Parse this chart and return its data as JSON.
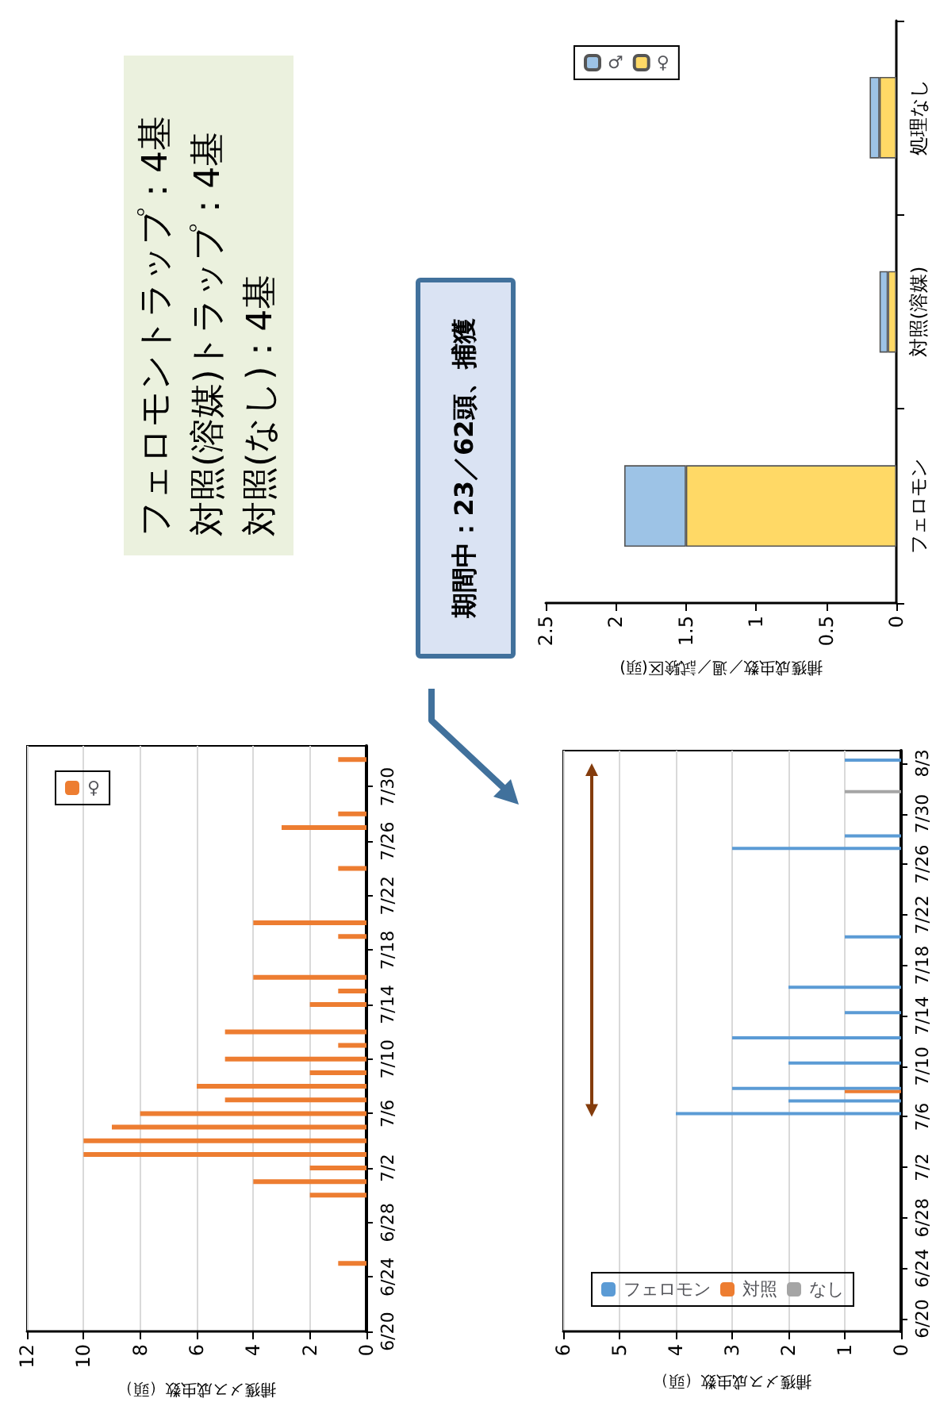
{
  "chart_data": [
    {
      "type": "bar",
      "orientation": "horizontal",
      "xlabel": "捕獲メス成虫数（頭）",
      "series": [
        {
          "name": "♀",
          "color": "#ed7d31",
          "x": [
            "--06-25",
            "--06-30",
            "--07-01",
            "--07-02",
            "--07-03",
            "--07-04",
            "--07-05",
            "--07-06",
            "--07-07",
            "--07-08",
            "--07-09",
            "--07-10",
            "--07-11",
            "--07-12",
            "--07-14",
            "--07-15",
            "--07-16",
            "--07-19",
            "--07-20",
            "--07-24",
            "--07-27",
            "--07-28",
            "--08-01"
          ],
          "values": [
            1,
            2,
            4,
            2,
            10,
            10,
            9,
            8,
            5,
            6,
            2,
            5,
            1,
            5,
            2,
            1,
            4,
            1,
            4,
            1,
            3,
            1,
            1
          ]
        }
      ],
      "ylim": [
        "--06-20",
        "--08-02"
      ],
      "yticks": [
        {
          "value": "--06-20",
          "label": "6/20"
        },
        {
          "value": "--06-24",
          "label": "6/24"
        },
        {
          "value": "--06-28",
          "label": "6/28"
        },
        {
          "value": "--07-02",
          "label": "7/2"
        },
        {
          "value": "--07-06",
          "label": "7/6"
        },
        {
          "value": "--07-10",
          "label": "7/10"
        },
        {
          "value": "--07-14",
          "label": "7/14"
        },
        {
          "value": "--07-18",
          "label": "7/18"
        },
        {
          "value": "--07-22",
          "label": "7/22"
        },
        {
          "value": "--07-26",
          "label": "7/26"
        },
        {
          "value": "--07-30",
          "label": "7/30"
        }
      ],
      "xlim": [
        12,
        0
      ],
      "xticks": [
        12,
        10,
        8,
        6,
        4,
        2,
        0
      ],
      "grid": "x",
      "legend": "top left"
    },
    {
      "type": "bar",
      "orientation": "horizontal",
      "xlabel": "捕獲メス成虫数（頭）",
      "series": [
        {
          "name": "フェロモン",
          "color": "#5b9bd5",
          "x": [
            "--07-06",
            "--07-07",
            "--07-08",
            "--07-10",
            "--07-12",
            "--07-14",
            "--07-16",
            "--07-20",
            "--07-27",
            "--07-28",
            "--08-03"
          ],
          "values": [
            4,
            2,
            3,
            2,
            3,
            1,
            2,
            1,
            3,
            1,
            1
          ]
        },
        {
          "name": "対照",
          "color": "#ed7d31",
          "x": [
            "--07-08"
          ],
          "values": [
            1
          ]
        },
        {
          "name": "なし",
          "color": "#a5a5a5",
          "x": [
            "--08-01"
          ],
          "values": [
            1
          ]
        }
      ],
      "ylim": [
        "--06-19",
        "--08-04"
      ],
      "yticks": [
        {
          "value": "--06-20",
          "label": "6/20"
        },
        {
          "value": "--06-24",
          "label": "6/24"
        },
        {
          "value": "--06-28",
          "label": "6/28"
        },
        {
          "value": "--07-02",
          "label": "7/2"
        },
        {
          "value": "--07-06",
          "label": "7/6"
        },
        {
          "value": "--07-10",
          "label": "7/10"
        },
        {
          "value": "--07-14",
          "label": "7/14"
        },
        {
          "value": "--07-18",
          "label": "7/18"
        },
        {
          "value": "--07-22",
          "label": "7/22"
        },
        {
          "value": "--07-26",
          "label": "7/26"
        },
        {
          "value": "--07-30",
          "label": "7/30"
        },
        {
          "value": "--08-03",
          "label": "8/3"
        }
      ],
      "xlim": [
        6,
        0
      ],
      "xticks": [
        6,
        5,
        4,
        3,
        2,
        1,
        0
      ],
      "grid": "x",
      "legend": "bottom left"
    },
    {
      "type": "bar",
      "orientation": "horizontal",
      "stacked": true,
      "xlabel": "捕獲成虫数／週／試験区(頭)",
      "categories": [
        "処理なし",
        "対照(溶媒)",
        "フェロモン"
      ],
      "series": [
        {
          "name": "♀",
          "color": "#ffd966",
          "values": [
            0.12,
            0.06,
            1.5
          ]
        },
        {
          "name": "♂",
          "color": "#9dc3e6",
          "values": [
            0.07,
            0.06,
            0.44
          ]
        }
      ],
      "xlim": [
        2.5,
        0
      ],
      "xticks": [
        2.5,
        2,
        1.5,
        1,
        0.5,
        0
      ],
      "legend": "top left"
    },
    {
      "type": "other",
      "annotations": [
        "フェロモントラップ：4基",
        "対照(溶媒)トラップ：4基",
        "対照(なし)：4基",
        "期間中：23／62頭、捕獲"
      ]
    }
  ]
}
